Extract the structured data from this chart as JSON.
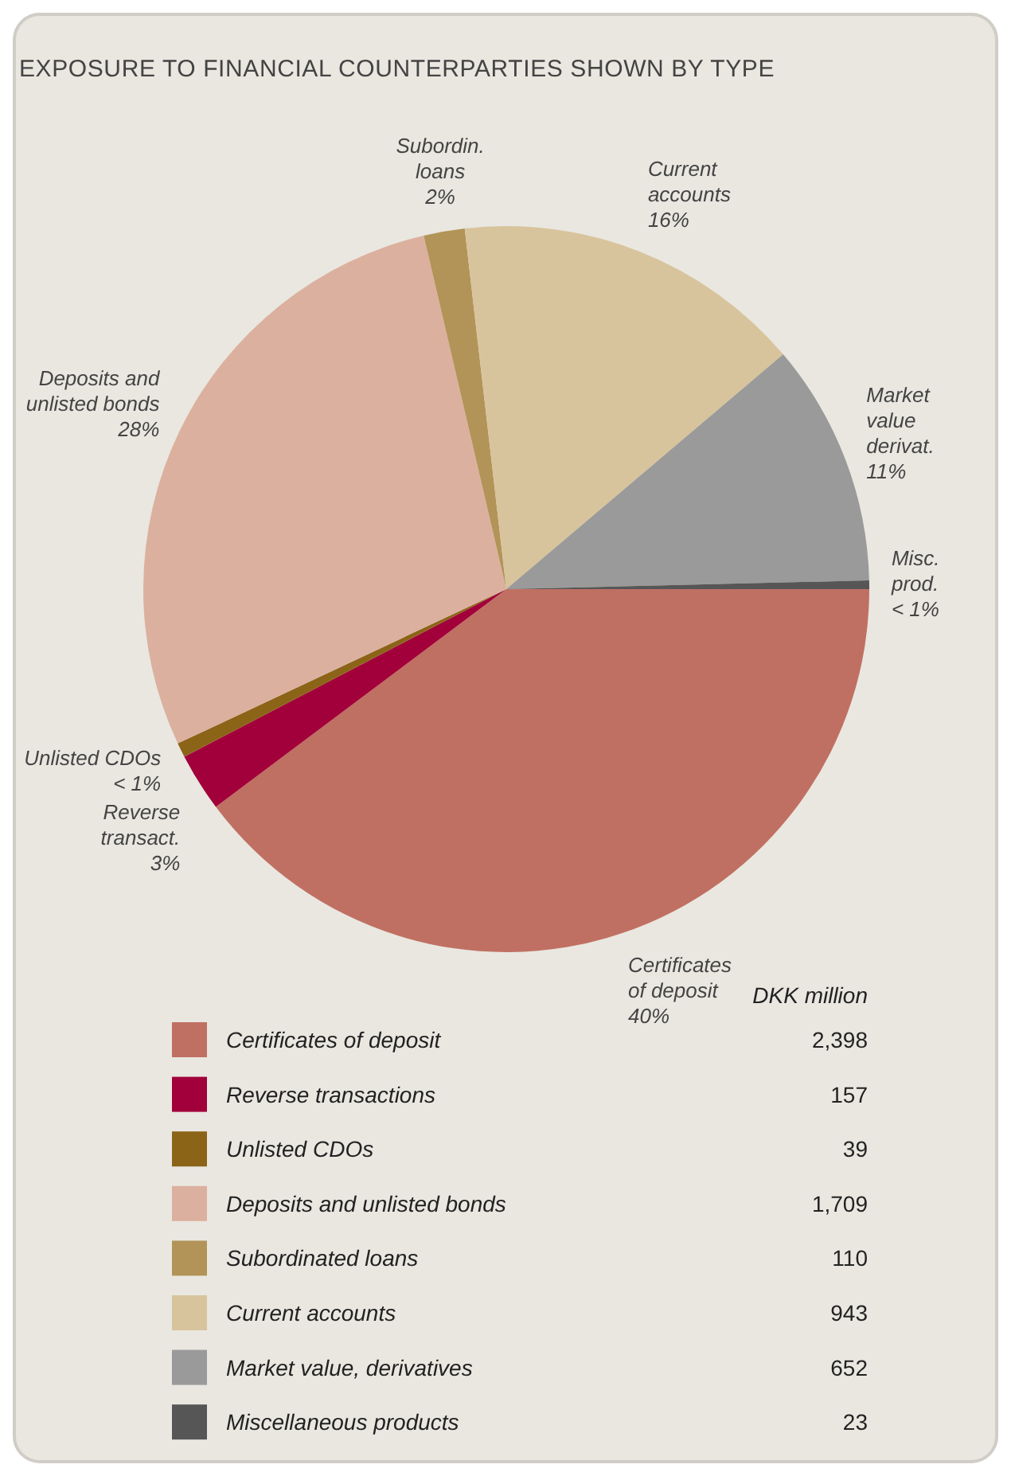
{
  "chart_data": {
    "type": "pie",
    "title": "EXPOSURE TO FINANCIAL COUNTERPARTIES SHOWN BY TYPE",
    "categories": [
      "Certificates of deposit",
      "Reverse transactions",
      "Unlisted CDOs",
      "Deposits and unlisted bonds",
      "Subordinated loans",
      "Current accounts",
      "Market value, derivatives",
      "Miscellaneous products"
    ],
    "values": [
      2398,
      157,
      39,
      1709,
      110,
      943,
      652,
      23
    ],
    "colors": [
      "#c07062",
      "#a2003a",
      "#8c6418",
      "#dcb09e",
      "#b29458",
      "#d8c49c",
      "#9a9a9a",
      "#565656"
    ],
    "value_labels": [
      "2,398",
      "157",
      "39",
      "1,709",
      "110",
      "943",
      "652",
      "23"
    ],
    "legend_title": "DKK million",
    "legend": "bottom",
    "annotations": [
      {
        "text": "40%",
        "x": "Certificates of deposit"
      },
      {
        "text": "Reverse\ntransact.\n3%",
        "x": "Reverse transactions"
      },
      {
        "text": "< 1%",
        "x": "Unlisted CDOs"
      },
      {
        "text": "28%",
        "x": "Deposits and unlisted bonds"
      },
      {
        "text": "Subordin.\nloans\n2%",
        "x": "Subordinated loans"
      },
      {
        "text": "16%",
        "x": "Current accounts"
      },
      {
        "text": "Market\nvalue\nderivat.\n11%",
        "x": "Market value, derivatives"
      },
      {
        "text": "Misc.\nprod.\n< 1%",
        "x": "Miscellaneous products"
      }
    ]
  }
}
